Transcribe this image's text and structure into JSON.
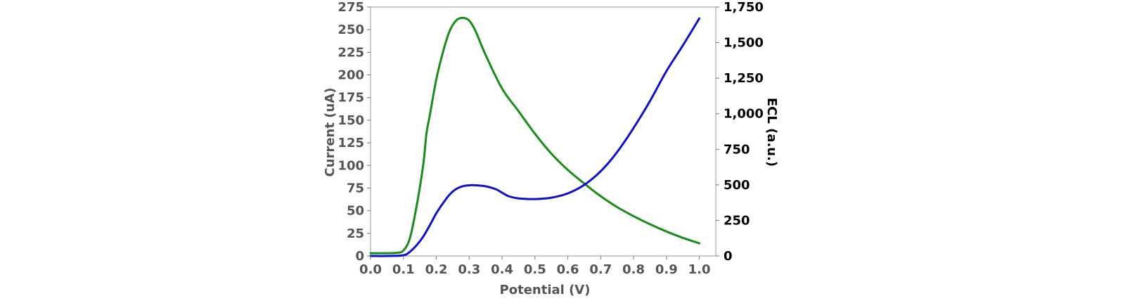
{
  "chart_data": {
    "type": "line",
    "xlabel": "Potential (V)",
    "ylabel_left": "Current (uA)",
    "ylabel_right": "ECL (a.u.)",
    "xlim": [
      0.0,
      1.05
    ],
    "ylim_left": [
      0,
      275
    ],
    "ylim_right": [
      0,
      1750
    ],
    "x_ticks": [
      "0.0",
      "0.1",
      "0.2",
      "0.3",
      "0.4",
      "0.5",
      "0.6",
      "0.7",
      "0.8",
      "0.9",
      "1.0"
    ],
    "y_left_ticks": [
      "0",
      "25",
      "50",
      "75",
      "100",
      "125",
      "150",
      "175",
      "200",
      "225",
      "250",
      "275"
    ],
    "y_right_ticks": [
      "0",
      "250",
      "500",
      "750",
      "1,000",
      "1,250",
      "1,500",
      "1,750"
    ],
    "grid": false,
    "series": [
      {
        "axis": "left",
        "color": "#1a8c1a",
        "x": [
          0.0,
          0.05,
          0.08,
          0.1,
          0.12,
          0.14,
          0.16,
          0.17,
          0.18,
          0.2,
          0.22,
          0.24,
          0.26,
          0.28,
          0.3,
          0.32,
          0.35,
          0.4,
          0.45,
          0.5,
          0.55,
          0.6,
          0.65,
          0.7,
          0.75,
          0.8,
          0.85,
          0.9,
          0.95,
          1.0
        ],
        "y": [
          3,
          3,
          3.5,
          6,
          20,
          55,
          100,
          135,
          155,
          195,
          225,
          248,
          260,
          263,
          260,
          248,
          222,
          185,
          160,
          135,
          113,
          95,
          80,
          66,
          54,
          44,
          35,
          27,
          20,
          14
        ]
      },
      {
        "axis": "right",
        "color": "#1010cc",
        "x": [
          0.0,
          0.05,
          0.1,
          0.12,
          0.14,
          0.16,
          0.18,
          0.2,
          0.22,
          0.24,
          0.26,
          0.28,
          0.3,
          0.32,
          0.35,
          0.38,
          0.4,
          0.42,
          0.45,
          0.5,
          0.55,
          0.6,
          0.65,
          0.7,
          0.75,
          0.8,
          0.85,
          0.9,
          0.95,
          1.0
        ],
        "y": [
          0,
          0,
          5,
          30,
          75,
          135,
          215,
          300,
          370,
          430,
          470,
          490,
          497,
          497,
          490,
          470,
          445,
          420,
          405,
          400,
          410,
          440,
          500,
          595,
          730,
          900,
          1090,
          1300,
          1480,
          1670
        ]
      }
    ]
  }
}
